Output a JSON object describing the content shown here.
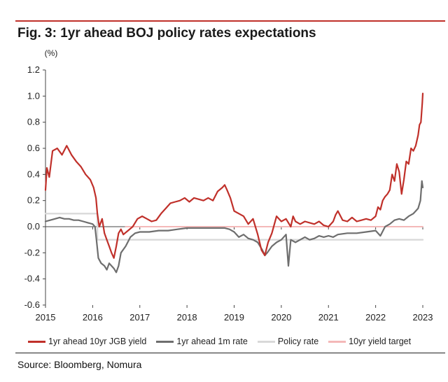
{
  "title": "Fig. 3: 1yr ahead BOJ policy rates expectations",
  "source": "Source: Bloomberg, Nomura",
  "colors": {
    "accent": "#c0302a",
    "jgb": "#c0302a",
    "m1": "#6e6e6e",
    "policy": "#d9d9d9",
    "target": "#f4b8b8",
    "axis": "#444444"
  },
  "chart_data": {
    "type": "line",
    "ylabel": "(%)",
    "xlim": [
      2015,
      2023
    ],
    "ylim": [
      -0.6,
      1.2
    ],
    "yticks": [
      -0.6,
      -0.4,
      -0.2,
      0.0,
      0.2,
      0.4,
      0.6,
      0.8,
      1.0,
      1.2
    ],
    "ytick_labels": [
      "-0.6",
      "-0.4",
      "-0.2",
      "0.0",
      "0.2",
      "0.4",
      "0.6",
      "0.8",
      "1.0",
      "1.2"
    ],
    "xticks": [
      2015,
      2016,
      2017,
      2018,
      2019,
      2020,
      2021,
      2022,
      2023
    ],
    "xtick_labels": [
      "2015",
      "2016",
      "2017",
      "2018",
      "2019",
      "2020",
      "2021",
      "2022",
      "2023"
    ],
    "grid": false,
    "legend_position": "bottom",
    "series": [
      {
        "name": "1yr ahead 10yr JGB yield",
        "color": "#c0302a",
        "x": [
          2015.0,
          2015.03,
          2015.08,
          2015.15,
          2015.25,
          2015.35,
          2015.45,
          2015.55,
          2015.65,
          2015.75,
          2015.85,
          2015.95,
          2016.02,
          2016.07,
          2016.1,
          2016.14,
          2016.2,
          2016.25,
          2016.3,
          2016.35,
          2016.4,
          2016.45,
          2016.5,
          2016.55,
          2016.6,
          2016.65,
          2016.75,
          2016.85,
          2016.95,
          2017.05,
          2017.15,
          2017.25,
          2017.35,
          2017.45,
          2017.55,
          2017.65,
          2017.75,
          2017.85,
          2017.95,
          2018.05,
          2018.15,
          2018.25,
          2018.35,
          2018.45,
          2018.55,
          2018.65,
          2018.75,
          2018.8,
          2018.85,
          2018.92,
          2019.0,
          2019.1,
          2019.2,
          2019.3,
          2019.4,
          2019.5,
          2019.58,
          2019.65,
          2019.72,
          2019.8,
          2019.9,
          2020.0,
          2020.1,
          2020.2,
          2020.25,
          2020.3,
          2020.4,
          2020.5,
          2020.6,
          2020.7,
          2020.8,
          2020.9,
          2021.0,
          2021.1,
          2021.15,
          2021.2,
          2021.3,
          2021.4,
          2021.5,
          2021.6,
          2021.7,
          2021.8,
          2021.9,
          2022.0,
          2022.05,
          2022.1,
          2022.15,
          2022.2,
          2022.25,
          2022.3,
          2022.35,
          2022.4,
          2022.45,
          2022.5,
          2022.55,
          2022.6,
          2022.65,
          2022.7,
          2022.75,
          2022.8,
          2022.85,
          2022.9,
          2022.93,
          2022.96,
          2022.99,
          2023.0
        ],
        "values": [
          0.28,
          0.45,
          0.38,
          0.58,
          0.6,
          0.55,
          0.62,
          0.55,
          0.5,
          0.46,
          0.4,
          0.36,
          0.3,
          0.22,
          0.1,
          0.0,
          0.06,
          -0.05,
          -0.1,
          -0.15,
          -0.2,
          -0.24,
          -0.15,
          -0.05,
          -0.02,
          -0.06,
          -0.03,
          0.0,
          0.06,
          0.08,
          0.06,
          0.04,
          0.05,
          0.1,
          0.14,
          0.18,
          0.19,
          0.2,
          0.22,
          0.19,
          0.22,
          0.21,
          0.2,
          0.22,
          0.2,
          0.27,
          0.3,
          0.32,
          0.28,
          0.22,
          0.12,
          0.1,
          0.08,
          0.02,
          0.06,
          -0.06,
          -0.18,
          -0.22,
          -0.12,
          -0.05,
          0.08,
          0.04,
          0.06,
          0.0,
          0.08,
          0.04,
          0.02,
          0.04,
          0.03,
          0.02,
          0.04,
          0.01,
          0.0,
          0.04,
          0.09,
          0.12,
          0.05,
          0.04,
          0.07,
          0.04,
          0.05,
          0.06,
          0.05,
          0.08,
          0.15,
          0.13,
          0.2,
          0.23,
          0.25,
          0.28,
          0.4,
          0.35,
          0.48,
          0.42,
          0.25,
          0.36,
          0.5,
          0.48,
          0.6,
          0.58,
          0.62,
          0.7,
          0.78,
          0.8,
          0.95,
          1.02
        ]
      },
      {
        "name": "1yr ahead 1m rate",
        "color": "#6e6e6e",
        "x": [
          2015.0,
          2015.1,
          2015.2,
          2015.3,
          2015.4,
          2015.5,
          2015.6,
          2015.7,
          2015.8,
          2015.9,
          2016.0,
          2016.05,
          2016.08,
          2016.12,
          2016.18,
          2016.25,
          2016.3,
          2016.35,
          2016.4,
          2016.45,
          2016.5,
          2016.55,
          2016.6,
          2016.7,
          2016.8,
          2016.9,
          2017.0,
          2017.2,
          2017.4,
          2017.6,
          2017.8,
          2018.0,
          2018.2,
          2018.4,
          2018.6,
          2018.8,
          2018.9,
          2019.0,
          2019.1,
          2019.2,
          2019.3,
          2019.4,
          2019.5,
          2019.6,
          2019.65,
          2019.7,
          2019.8,
          2019.9,
          2020.0,
          2020.1,
          2020.15,
          2020.2,
          2020.3,
          2020.4,
          2020.5,
          2020.6,
          2020.7,
          2020.8,
          2020.9,
          2021.0,
          2021.1,
          2021.2,
          2021.4,
          2021.6,
          2021.8,
          2022.0,
          2022.1,
          2022.2,
          2022.3,
          2022.4,
          2022.5,
          2022.6,
          2022.7,
          2022.8,
          2022.85,
          2022.9,
          2022.95,
          2022.98,
          2023.0
        ],
        "values": [
          0.04,
          0.05,
          0.06,
          0.07,
          0.06,
          0.06,
          0.05,
          0.05,
          0.04,
          0.03,
          0.02,
          0.0,
          -0.1,
          -0.24,
          -0.28,
          -0.3,
          -0.33,
          -0.28,
          -0.3,
          -0.32,
          -0.35,
          -0.3,
          -0.2,
          -0.15,
          -0.08,
          -0.05,
          -0.04,
          -0.04,
          -0.03,
          -0.03,
          -0.02,
          -0.01,
          -0.01,
          -0.01,
          -0.01,
          -0.01,
          -0.02,
          -0.04,
          -0.08,
          -0.06,
          -0.09,
          -0.1,
          -0.12,
          -0.18,
          -0.22,
          -0.2,
          -0.15,
          -0.12,
          -0.1,
          -0.06,
          -0.3,
          -0.1,
          -0.12,
          -0.1,
          -0.08,
          -0.1,
          -0.09,
          -0.07,
          -0.08,
          -0.07,
          -0.08,
          -0.06,
          -0.05,
          -0.05,
          -0.04,
          -0.03,
          -0.07,
          0.0,
          0.02,
          0.05,
          0.06,
          0.05,
          0.08,
          0.1,
          0.12,
          0.14,
          0.2,
          0.35,
          0.3
        ]
      },
      {
        "name": "Policy rate",
        "color": "#d9d9d9",
        "x": [
          2015.0,
          2016.1,
          2016.1,
          2023.0
        ],
        "values": [
          0.1,
          0.1,
          -0.1,
          -0.1
        ]
      },
      {
        "name": "10yr yield target",
        "color": "#f4b8b8",
        "x": [
          2016.7,
          2023.0
        ],
        "values": [
          0.0,
          0.0
        ]
      }
    ]
  }
}
